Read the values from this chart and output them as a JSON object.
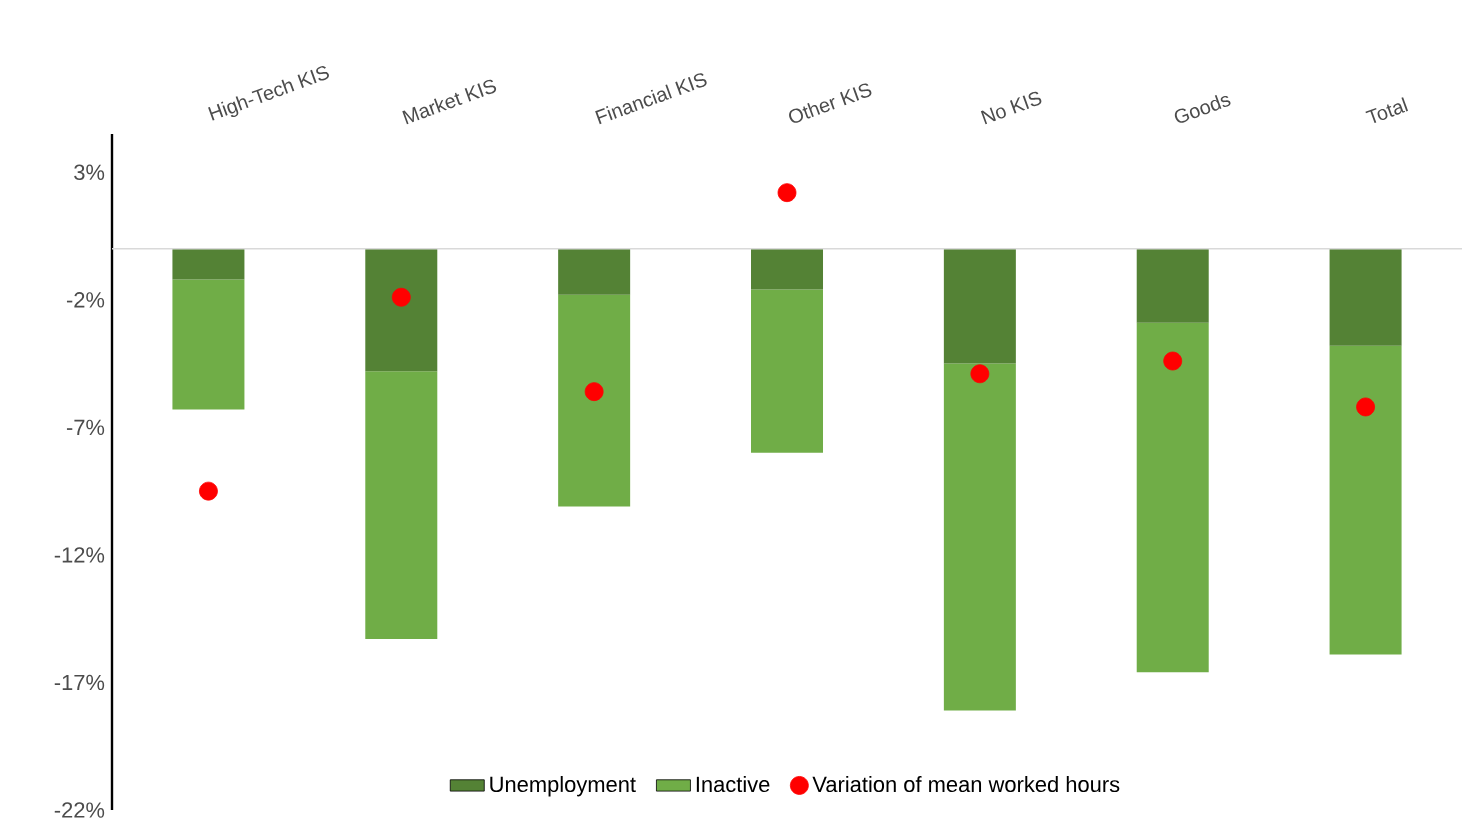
{
  "chart_data": {
    "type": "bar",
    "stacked": true,
    "categories": [
      "High-Tech KIS",
      "Market KIS",
      "Financial KIS",
      "Other KIS",
      "No KIS",
      "Goods",
      "Total"
    ],
    "series": [
      {
        "name": "Unemployment",
        "color": "#548235",
        "values": [
          -1.2,
          -4.8,
          -1.8,
          -1.6,
          -4.5,
          -2.9,
          -3.8
        ]
      },
      {
        "name": "Inactive",
        "color": "#70ad47",
        "values": [
          -5.1,
          -10.5,
          -8.3,
          -6.4,
          -13.6,
          -13.7,
          -12.1
        ]
      },
      {
        "name": "Variation of mean worked hours",
        "type": "scatter",
        "marker": "circle",
        "color": "#ff0000",
        "values": [
          -9.5,
          -1.9,
          -5.6,
          2.2,
          -4.9,
          -4.4,
          -6.2
        ]
      }
    ],
    "ylim": [
      -22,
      4.5
    ],
    "yticks": [
      {
        "value": 3,
        "label": "3%"
      },
      {
        "value": -2,
        "label": "-2%"
      },
      {
        "value": -7,
        "label": "-7%"
      },
      {
        "value": -12,
        "label": "-12%"
      },
      {
        "value": -17,
        "label": "-17%"
      },
      {
        "value": -22,
        "label": "-22%"
      }
    ],
    "grid": false,
    "legend": "bottom"
  }
}
